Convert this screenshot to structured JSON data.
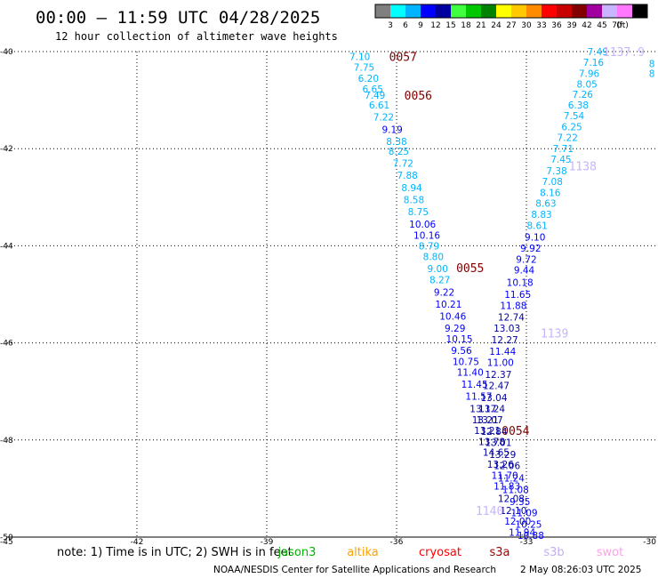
{
  "chart_data": {
    "type": "scatter",
    "title": "00:00 – 11:59 UTC 04/28/2025",
    "subtitle": "12 hour collection of altimeter wave heights",
    "xlabel": "",
    "ylabel": "",
    "xlim": [
      -45,
      -30
    ],
    "ylim": [
      -50,
      -40
    ],
    "grid": true,
    "x_ticks": [
      "-45",
      "-42",
      "-39",
      "-36",
      "-33",
      "-30"
    ],
    "y_ticks": [
      "-40",
      "-42",
      "-44",
      "-46",
      "-48",
      "-50"
    ],
    "legend": {
      "placement": "top-right",
      "unit": "(ft)",
      "colors": [
        "#7f7f7f",
        "#00ffff",
        "#00b4ff",
        "#0000ff",
        "#0000a0",
        "#40ff40",
        "#00c800",
        "#008200",
        "#ffff00",
        "#ffc800",
        "#ff8c00",
        "#ff0000",
        "#c80000",
        "#820000",
        "#a000a0",
        "#c8b4ff",
        "#ff78ff",
        "#000000"
      ],
      "labels": [
        "3",
        "6",
        "9",
        "12",
        "15",
        "18",
        "21",
        "24",
        "27",
        "30",
        "33",
        "36",
        "39",
        "42",
        "45",
        "70"
      ]
    },
    "time_labels": [
      {
        "text": "0057",
        "x": -35.85,
        "y": -40.1
      },
      {
        "text": "0056",
        "x": -35.5,
        "y": -40.9
      },
      {
        "text": "0055",
        "x": -34.3,
        "y": -44.45
      },
      {
        "text": "0054",
        "x": -33.25,
        "y": -47.8
      },
      {
        "text": "1137.9",
        "x": -30.75,
        "y": -40.0
      },
      {
        "text": "1138",
        "x": -31.7,
        "y": -42.35
      },
      {
        "text": "1139",
        "x": -32.35,
        "y": -45.8
      },
      {
        "text": "1140",
        "x": -33.85,
        "y": -49.45
      }
    ],
    "series": [
      {
        "name": "jason3",
        "points": [
          {
            "x": -36.85,
            "y": -40.1,
            "v": "7.10"
          },
          {
            "x": -36.75,
            "y": -40.32,
            "v": "7.75"
          },
          {
            "x": -36.65,
            "y": -40.55,
            "v": "6.20"
          },
          {
            "x": -36.55,
            "y": -40.77,
            "v": "6.65"
          },
          {
            "x": -36.5,
            "y": -40.9,
            "v": "7.49"
          },
          {
            "x": -36.4,
            "y": -41.1,
            "v": "6.61"
          },
          {
            "x": -36.3,
            "y": -41.35,
            "v": "7.22"
          },
          {
            "x": -36.1,
            "y": -41.6,
            "v": "9.19"
          },
          {
            "x": -36.0,
            "y": -41.85,
            "v": "8.38"
          },
          {
            "x": -35.95,
            "y": -42.05,
            "v": "8.25"
          },
          {
            "x": -35.85,
            "y": -42.3,
            "v": "7.72"
          },
          {
            "x": -35.75,
            "y": -42.55,
            "v": "7.88"
          },
          {
            "x": -35.65,
            "y": -42.8,
            "v": "8.94"
          },
          {
            "x": -35.6,
            "y": -43.05,
            "v": "8.58"
          },
          {
            "x": -35.5,
            "y": -43.3,
            "v": "8.75"
          },
          {
            "x": -35.4,
            "y": -43.55,
            "v": "10.06"
          },
          {
            "x": -35.3,
            "y": -43.78,
            "v": "10.16"
          },
          {
            "x": -35.25,
            "y": -44.0,
            "v": "8.79"
          },
          {
            "x": -35.15,
            "y": -44.22,
            "v": "8.80"
          },
          {
            "x": -35.05,
            "y": -44.47,
            "v": "9.00"
          },
          {
            "x": -35.0,
            "y": -44.7,
            "v": "8.27"
          },
          {
            "x": -34.9,
            "y": -44.95,
            "v": "9.22"
          },
          {
            "x": -34.8,
            "y": -45.2,
            "v": "10.21"
          },
          {
            "x": -34.7,
            "y": -45.45,
            "v": "10.46"
          },
          {
            "x": -34.65,
            "y": -45.7,
            "v": "9.29"
          },
          {
            "x": -34.55,
            "y": -45.92,
            "v": "10.15"
          },
          {
            "x": -34.5,
            "y": -46.15,
            "v": "9.56"
          },
          {
            "x": -34.4,
            "y": -46.38,
            "v": "10.75"
          },
          {
            "x": -34.3,
            "y": -46.6,
            "v": "11.40"
          },
          {
            "x": -34.2,
            "y": -46.85,
            "v": "11.45"
          },
          {
            "x": -34.1,
            "y": -47.1,
            "v": "11.57"
          },
          {
            "x": -34.0,
            "y": -47.35,
            "v": "13.17"
          },
          {
            "x": -33.95,
            "y": -47.58,
            "v": "13.21"
          },
          {
            "x": -33.9,
            "y": -47.8,
            "v": "13.21"
          },
          {
            "x": -33.8,
            "y": -48.03,
            "v": "13.78"
          },
          {
            "x": -33.7,
            "y": -48.25,
            "v": "14.65"
          },
          {
            "x": -33.6,
            "y": -48.5,
            "v": "13.26"
          },
          {
            "x": -33.5,
            "y": -48.73,
            "v": "11.70"
          },
          {
            "x": -33.45,
            "y": -48.95,
            "v": "11.83"
          },
          {
            "x": -33.35,
            "y": -49.2,
            "v": "12.08"
          },
          {
            "x": -33.3,
            "y": -49.45,
            "v": "12.10"
          },
          {
            "x": -33.2,
            "y": -49.67,
            "v": "12.00"
          },
          {
            "x": -33.1,
            "y": -49.9,
            "v": "11.94"
          }
        ]
      },
      {
        "name": "s3b",
        "points": [
          {
            "x": -31.35,
            "y": -40.0,
            "v": "7.49"
          },
          {
            "x": -31.45,
            "y": -40.22,
            "v": "7.16"
          },
          {
            "x": -31.55,
            "y": -40.45,
            "v": "7.96"
          },
          {
            "x": -31.6,
            "y": -40.67,
            "v": "8.05"
          },
          {
            "x": -31.7,
            "y": -40.88,
            "v": "7.26"
          },
          {
            "x": -31.8,
            "y": -41.1,
            "v": "6.38"
          },
          {
            "x": -31.9,
            "y": -41.32,
            "v": "7.54"
          },
          {
            "x": -31.95,
            "y": -41.55,
            "v": "6.25"
          },
          {
            "x": -32.05,
            "y": -41.77,
            "v": "7.22"
          },
          {
            "x": -32.15,
            "y": -42.0,
            "v": "7.71"
          },
          {
            "x": -32.2,
            "y": -42.22,
            "v": "7.45"
          },
          {
            "x": -32.3,
            "y": -42.45,
            "v": "7.38"
          },
          {
            "x": -32.4,
            "y": -42.67,
            "v": "7.08"
          },
          {
            "x": -32.45,
            "y": -42.9,
            "v": "8.16"
          },
          {
            "x": -32.55,
            "y": -43.12,
            "v": "8.63"
          },
          {
            "x": -32.65,
            "y": -43.35,
            "v": "8.83"
          },
          {
            "x": -32.75,
            "y": -43.58,
            "v": "8.61"
          },
          {
            "x": -32.8,
            "y": -43.82,
            "v": "9.10"
          },
          {
            "x": -32.9,
            "y": -44.05,
            "v": "9.92"
          },
          {
            "x": -33.0,
            "y": -44.28,
            "v": "9.72"
          },
          {
            "x": -33.05,
            "y": -44.5,
            "v": "9.44"
          },
          {
            "x": -33.15,
            "y": -44.75,
            "v": "10.18"
          },
          {
            "x": -33.2,
            "y": -45.0,
            "v": "11.65"
          },
          {
            "x": -33.3,
            "y": -45.23,
            "v": "11.88"
          },
          {
            "x": -33.35,
            "y": -45.47,
            "v": "12.74"
          },
          {
            "x": -33.45,
            "y": -45.7,
            "v": "13.03"
          },
          {
            "x": -33.5,
            "y": -45.93,
            "v": "12.27"
          },
          {
            "x": -33.55,
            "y": -46.17,
            "v": "11.44"
          },
          {
            "x": -33.6,
            "y": -46.4,
            "v": "11.00"
          },
          {
            "x": -33.65,
            "y": -46.65,
            "v": "12.37"
          },
          {
            "x": -33.7,
            "y": -46.88,
            "v": "12.47"
          },
          {
            "x": -33.75,
            "y": -47.12,
            "v": "13.04"
          },
          {
            "x": -33.8,
            "y": -47.35,
            "v": "13.24"
          },
          {
            "x": -33.85,
            "y": -47.58,
            "v": "13.07"
          },
          {
            "x": -33.75,
            "y": -47.82,
            "v": "12.84"
          },
          {
            "x": -33.65,
            "y": -48.05,
            "v": "13.01"
          },
          {
            "x": -33.55,
            "y": -48.3,
            "v": "13.29"
          },
          {
            "x": -33.45,
            "y": -48.53,
            "v": "12.06"
          },
          {
            "x": -33.35,
            "y": -48.78,
            "v": "11.24"
          },
          {
            "x": -33.25,
            "y": -49.02,
            "v": "11.08"
          },
          {
            "x": -33.15,
            "y": -49.27,
            "v": "9.35"
          },
          {
            "x": -33.05,
            "y": -49.5,
            "v": "11.09"
          },
          {
            "x": -32.95,
            "y": -49.73,
            "v": "10.25"
          },
          {
            "x": -32.9,
            "y": -49.96,
            "v": "10.88"
          }
        ]
      },
      {
        "name": "swot",
        "points": [
          {
            "x": -30.1,
            "y": -40.25,
            "v": "8"
          },
          {
            "x": -30.1,
            "y": -40.45,
            "v": "8"
          }
        ]
      }
    ]
  },
  "note": "note: 1) Time is in UTC; 2) SWH is in feet",
  "satellites": [
    {
      "name": "jason3",
      "color": "#00b400"
    },
    {
      "name": "altika",
      "color": "#ffa000"
    },
    {
      "name": "cryosat",
      "color": "#ff0000"
    },
    {
      "name": "s3a",
      "color": "#a00000"
    },
    {
      "name": "s3b",
      "color": "#c0b0f0"
    },
    {
      "name": "swot",
      "color": "#ffa0e6"
    }
  ],
  "footer": "NOAA/NESDIS Center for Satellite Applications and Research",
  "timestamp": "2 May 08:26:03 UTC 2025"
}
